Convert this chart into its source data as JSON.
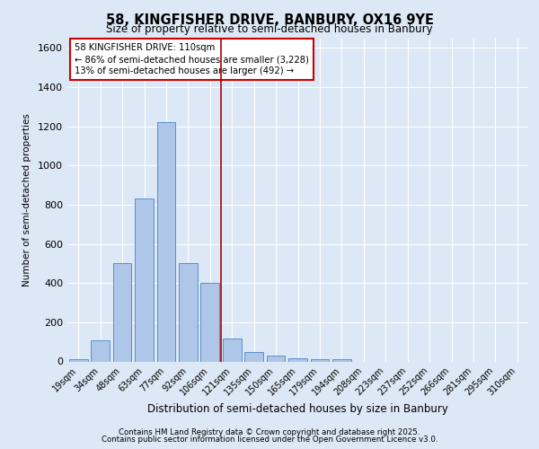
{
  "title1": "58, KINGFISHER DRIVE, BANBURY, OX16 9YE",
  "title2": "Size of property relative to semi-detached houses in Banbury",
  "xlabel": "Distribution of semi-detached houses by size in Banbury",
  "ylabel": "Number of semi-detached properties",
  "categories": [
    "19sqm",
    "34sqm",
    "48sqm",
    "63sqm",
    "77sqm",
    "92sqm",
    "106sqm",
    "121sqm",
    "135sqm",
    "150sqm",
    "165sqm",
    "179sqm",
    "194sqm",
    "208sqm",
    "223sqm",
    "237sqm",
    "252sqm",
    "266sqm",
    "281sqm",
    "295sqm",
    "310sqm"
  ],
  "values": [
    10,
    110,
    500,
    830,
    1220,
    500,
    400,
    115,
    50,
    30,
    15,
    10,
    10,
    0,
    0,
    0,
    0,
    0,
    0,
    0,
    0
  ],
  "bar_color": "#aec6e8",
  "bar_edge_color": "#5b8fc9",
  "vline_color": "#aa0000",
  "vline_x_idx": 6.5,
  "annotation_text": "58 KINGFISHER DRIVE: 110sqm\n← 86% of semi-detached houses are smaller (3,228)\n13% of semi-detached houses are larger (492) →",
  "annotation_box_color": "#ffffff",
  "annotation_box_edge": "#cc0000",
  "bg_color": "#dce8f5",
  "plot_bg_color": "#dce8f5",
  "grid_color": "#ffffff",
  "ylim": [
    0,
    1650
  ],
  "yticks": [
    0,
    200,
    400,
    600,
    800,
    1000,
    1200,
    1400,
    1600
  ],
  "footer1": "Contains HM Land Registry data © Crown copyright and database right 2025.",
  "footer2": "Contains public sector information licensed under the Open Government Licence v3.0."
}
